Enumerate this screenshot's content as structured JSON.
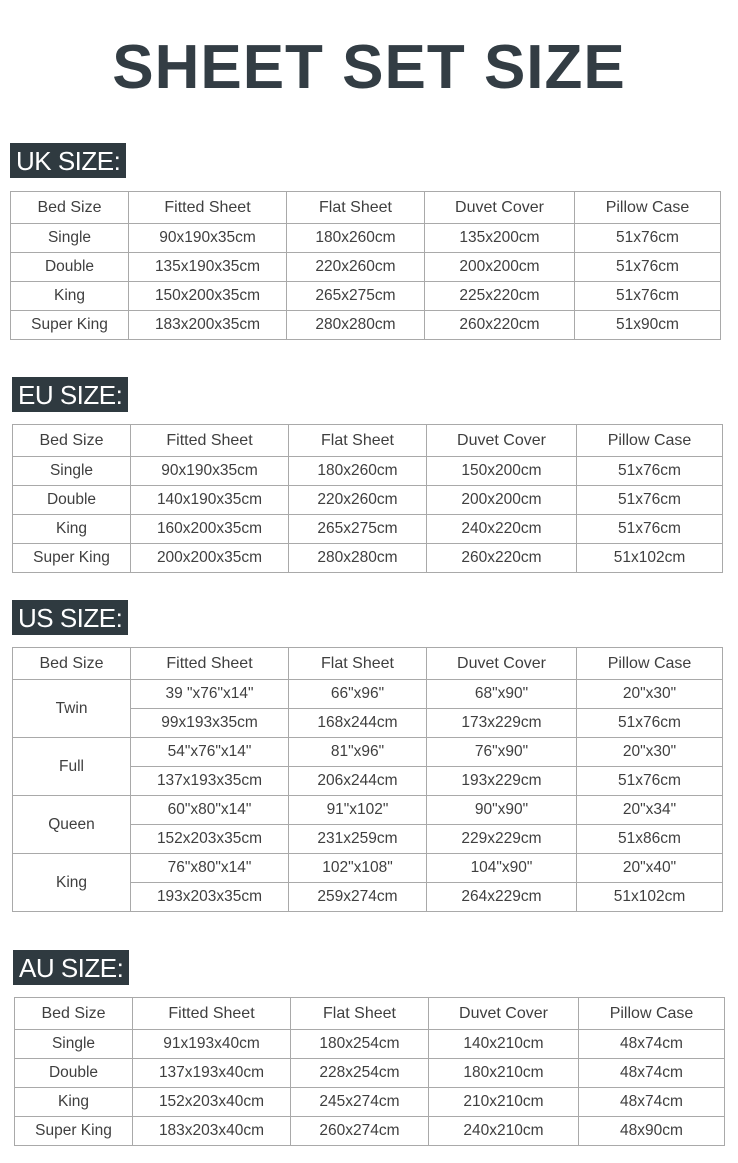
{
  "title": "SHEET SET SIZE",
  "headers": [
    "Bed Size",
    "Fitted Sheet",
    "Flat Sheet",
    "Duvet Cover",
    "Pillow Case"
  ],
  "sections": [
    {
      "label": "UK SIZE:",
      "rows": [
        [
          "Single",
          "90x190x35cm",
          "180x260cm",
          "135x200cm",
          "51x76cm"
        ],
        [
          "Double",
          "135x190x35cm",
          "220x260cm",
          "200x200cm",
          "51x76cm"
        ],
        [
          "King",
          "150x200x35cm",
          "265x275cm",
          "225x220cm",
          "51x76cm"
        ],
        [
          "Super King",
          "183x200x35cm",
          "280x280cm",
          "260x220cm",
          "51x90cm"
        ]
      ]
    },
    {
      "label": "EU SIZE:",
      "rows": [
        [
          "Single",
          "90x190x35cm",
          "180x260cm",
          "150x200cm",
          "51x76cm"
        ],
        [
          "Double",
          "140x190x35cm",
          "220x260cm",
          "200x200cm",
          "51x76cm"
        ],
        [
          "King",
          "160x200x35cm",
          "265x275cm",
          "240x220cm",
          "51x76cm"
        ],
        [
          "Super King",
          "200x200x35cm",
          "280x280cm",
          "260x220cm",
          "51x102cm"
        ]
      ]
    },
    {
      "label": "US SIZE:",
      "groups": [
        {
          "bed": "Twin",
          "rows": [
            [
              "39 \"x76\"x14\"",
              "66\"x96\"",
              "68\"x90\"",
              "20\"x30\""
            ],
            [
              "99x193x35cm",
              "168x244cm",
              "173x229cm",
              "51x76cm"
            ]
          ]
        },
        {
          "bed": "Full",
          "rows": [
            [
              "54\"x76\"x14\"",
              "81\"x96\"",
              "76\"x90\"",
              "20\"x30\""
            ],
            [
              "137x193x35cm",
              "206x244cm",
              "193x229cm",
              "51x76cm"
            ]
          ]
        },
        {
          "bed": "Queen",
          "rows": [
            [
              "60\"x80\"x14\"",
              "91\"x102\"",
              "90\"x90\"",
              "20\"x34\""
            ],
            [
              "152x203x35cm",
              "231x259cm",
              "229x229cm",
              "51x86cm"
            ]
          ]
        },
        {
          "bed": "King",
          "rows": [
            [
              "76\"x80\"x14\"",
              "102\"x108\"",
              "104\"x90\"",
              "20\"x40\""
            ],
            [
              "193x203x35cm",
              "259x274cm",
              "264x229cm",
              "51x102cm"
            ]
          ]
        }
      ]
    },
    {
      "label": "AU SIZE:",
      "rows": [
        [
          "Single",
          "91x193x40cm",
          "180x254cm",
          "140x210cm",
          "48x74cm"
        ],
        [
          "Double",
          "137x193x40cm",
          "228x254cm",
          "180x210cm",
          "48x74cm"
        ],
        [
          "King",
          "152x203x40cm",
          "245x274cm",
          "210x210cm",
          "48x74cm"
        ],
        [
          "Super King",
          "183x203x40cm",
          "260x274cm",
          "240x210cm",
          "48x90cm"
        ]
      ]
    }
  ]
}
